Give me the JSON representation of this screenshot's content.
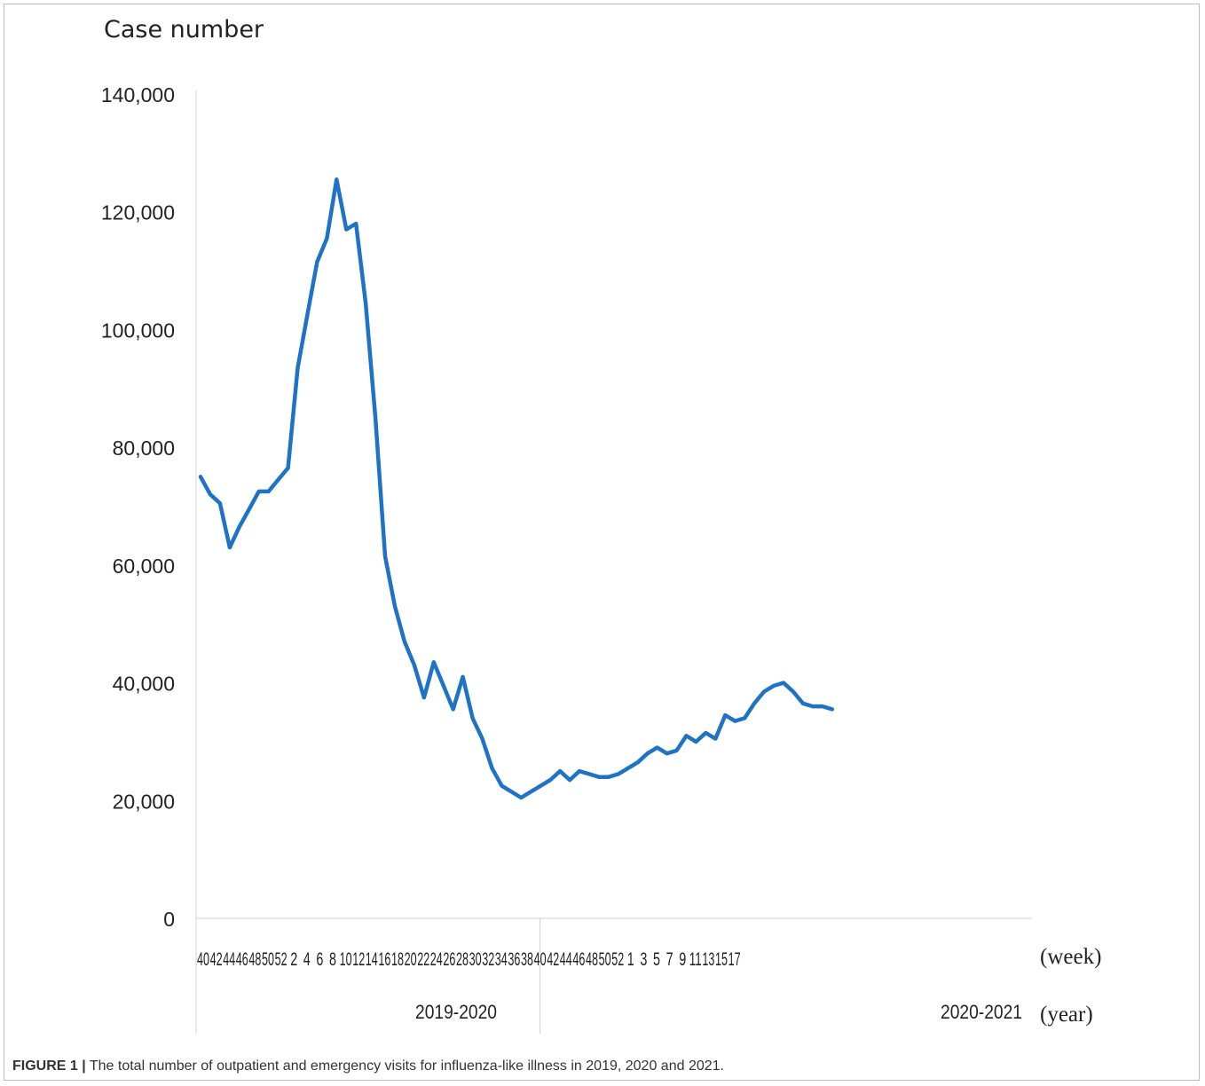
{
  "caption": {
    "label": "FIGURE 1 |",
    "text": "The total number of outpatient and emergency visits for influenza-like illness in 2019, 2020 and 2021."
  },
  "chart_data": {
    "type": "line",
    "ylabel": "Case number",
    "xlabel_week": "(week)",
    "xlabel_year": "(year)",
    "ylim": [
      0,
      140000
    ],
    "yticks": [
      0,
      20000,
      40000,
      60000,
      80000,
      100000,
      120000,
      140000
    ],
    "ytick_labels": [
      "0",
      "20,000",
      "40,000",
      "60,000",
      "80,000",
      "100,000",
      "120,000",
      "140,000"
    ],
    "week_labels": [
      "40",
      "42",
      "44",
      "46",
      "48",
      "50",
      "52",
      "2",
      "4",
      "6",
      "8",
      "10",
      "12",
      "14",
      "16",
      "18",
      "20",
      "22",
      "24",
      "26",
      "28",
      "30",
      "32",
      "34",
      "36",
      "38",
      "40",
      "42",
      "44",
      "46",
      "48",
      "50",
      "52",
      "1",
      "3",
      "5",
      "7",
      "9",
      "11",
      "13",
      "15",
      "17"
    ],
    "year_labels": [
      {
        "label": "2019-2020",
        "start_index": 0
      },
      {
        "label": "2020-2021",
        "start_index": 33
      }
    ],
    "line_color": "#1f73c6",
    "series": [
      {
        "values": [
          75000,
          72000,
          70500,
          63000,
          66500,
          69500,
          72500,
          72500,
          74500,
          76500,
          93500,
          102500,
          111500,
          115500,
          125500,
          117000,
          118000,
          104500,
          85000,
          61500,
          53000,
          47000,
          43000,
          37500,
          43500,
          39500,
          35500,
          41000,
          34000,
          30500,
          25500,
          22500,
          21500,
          20500,
          21500,
          22500,
          23500,
          25000,
          23500,
          25000,
          24500,
          24000,
          24000,
          24500,
          25500,
          26500,
          28000,
          29000,
          28000,
          28500,
          31000,
          30000,
          31500,
          30500,
          34500,
          33500,
          34000,
          36500,
          38500,
          39500,
          40000,
          38500,
          36500,
          36000,
          36000,
          35500
        ],
        "weeks": "40..52 (2019), 1..53 (2020)"
      }
    ]
  }
}
